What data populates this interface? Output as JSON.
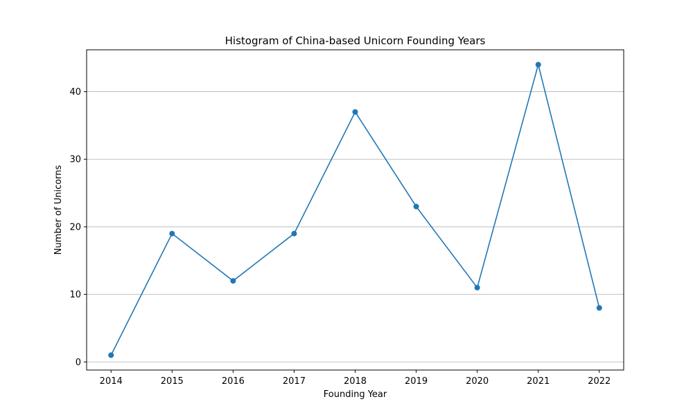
{
  "chart_data": {
    "type": "line",
    "title": "Histogram of China-based Unicorn Founding Years",
    "xlabel": "Founding Year",
    "ylabel": "Number of Unicorns",
    "x": [
      "2014",
      "2015",
      "2016",
      "2017",
      "2018",
      "2019",
      "2020",
      "2021",
      "2022"
    ],
    "series": [
      {
        "values": [
          1,
          19,
          12,
          19,
          37,
          23,
          11,
          44,
          8
        ],
        "color": "#1f77b4",
        "marker": "circle"
      }
    ],
    "xlim": [
      2013.6,
      2022.4
    ],
    "ylim": [
      -1.2,
      46.2
    ],
    "yticks": [
      0,
      10,
      20,
      30,
      40
    ],
    "grid": "y-major",
    "legend": "none"
  }
}
